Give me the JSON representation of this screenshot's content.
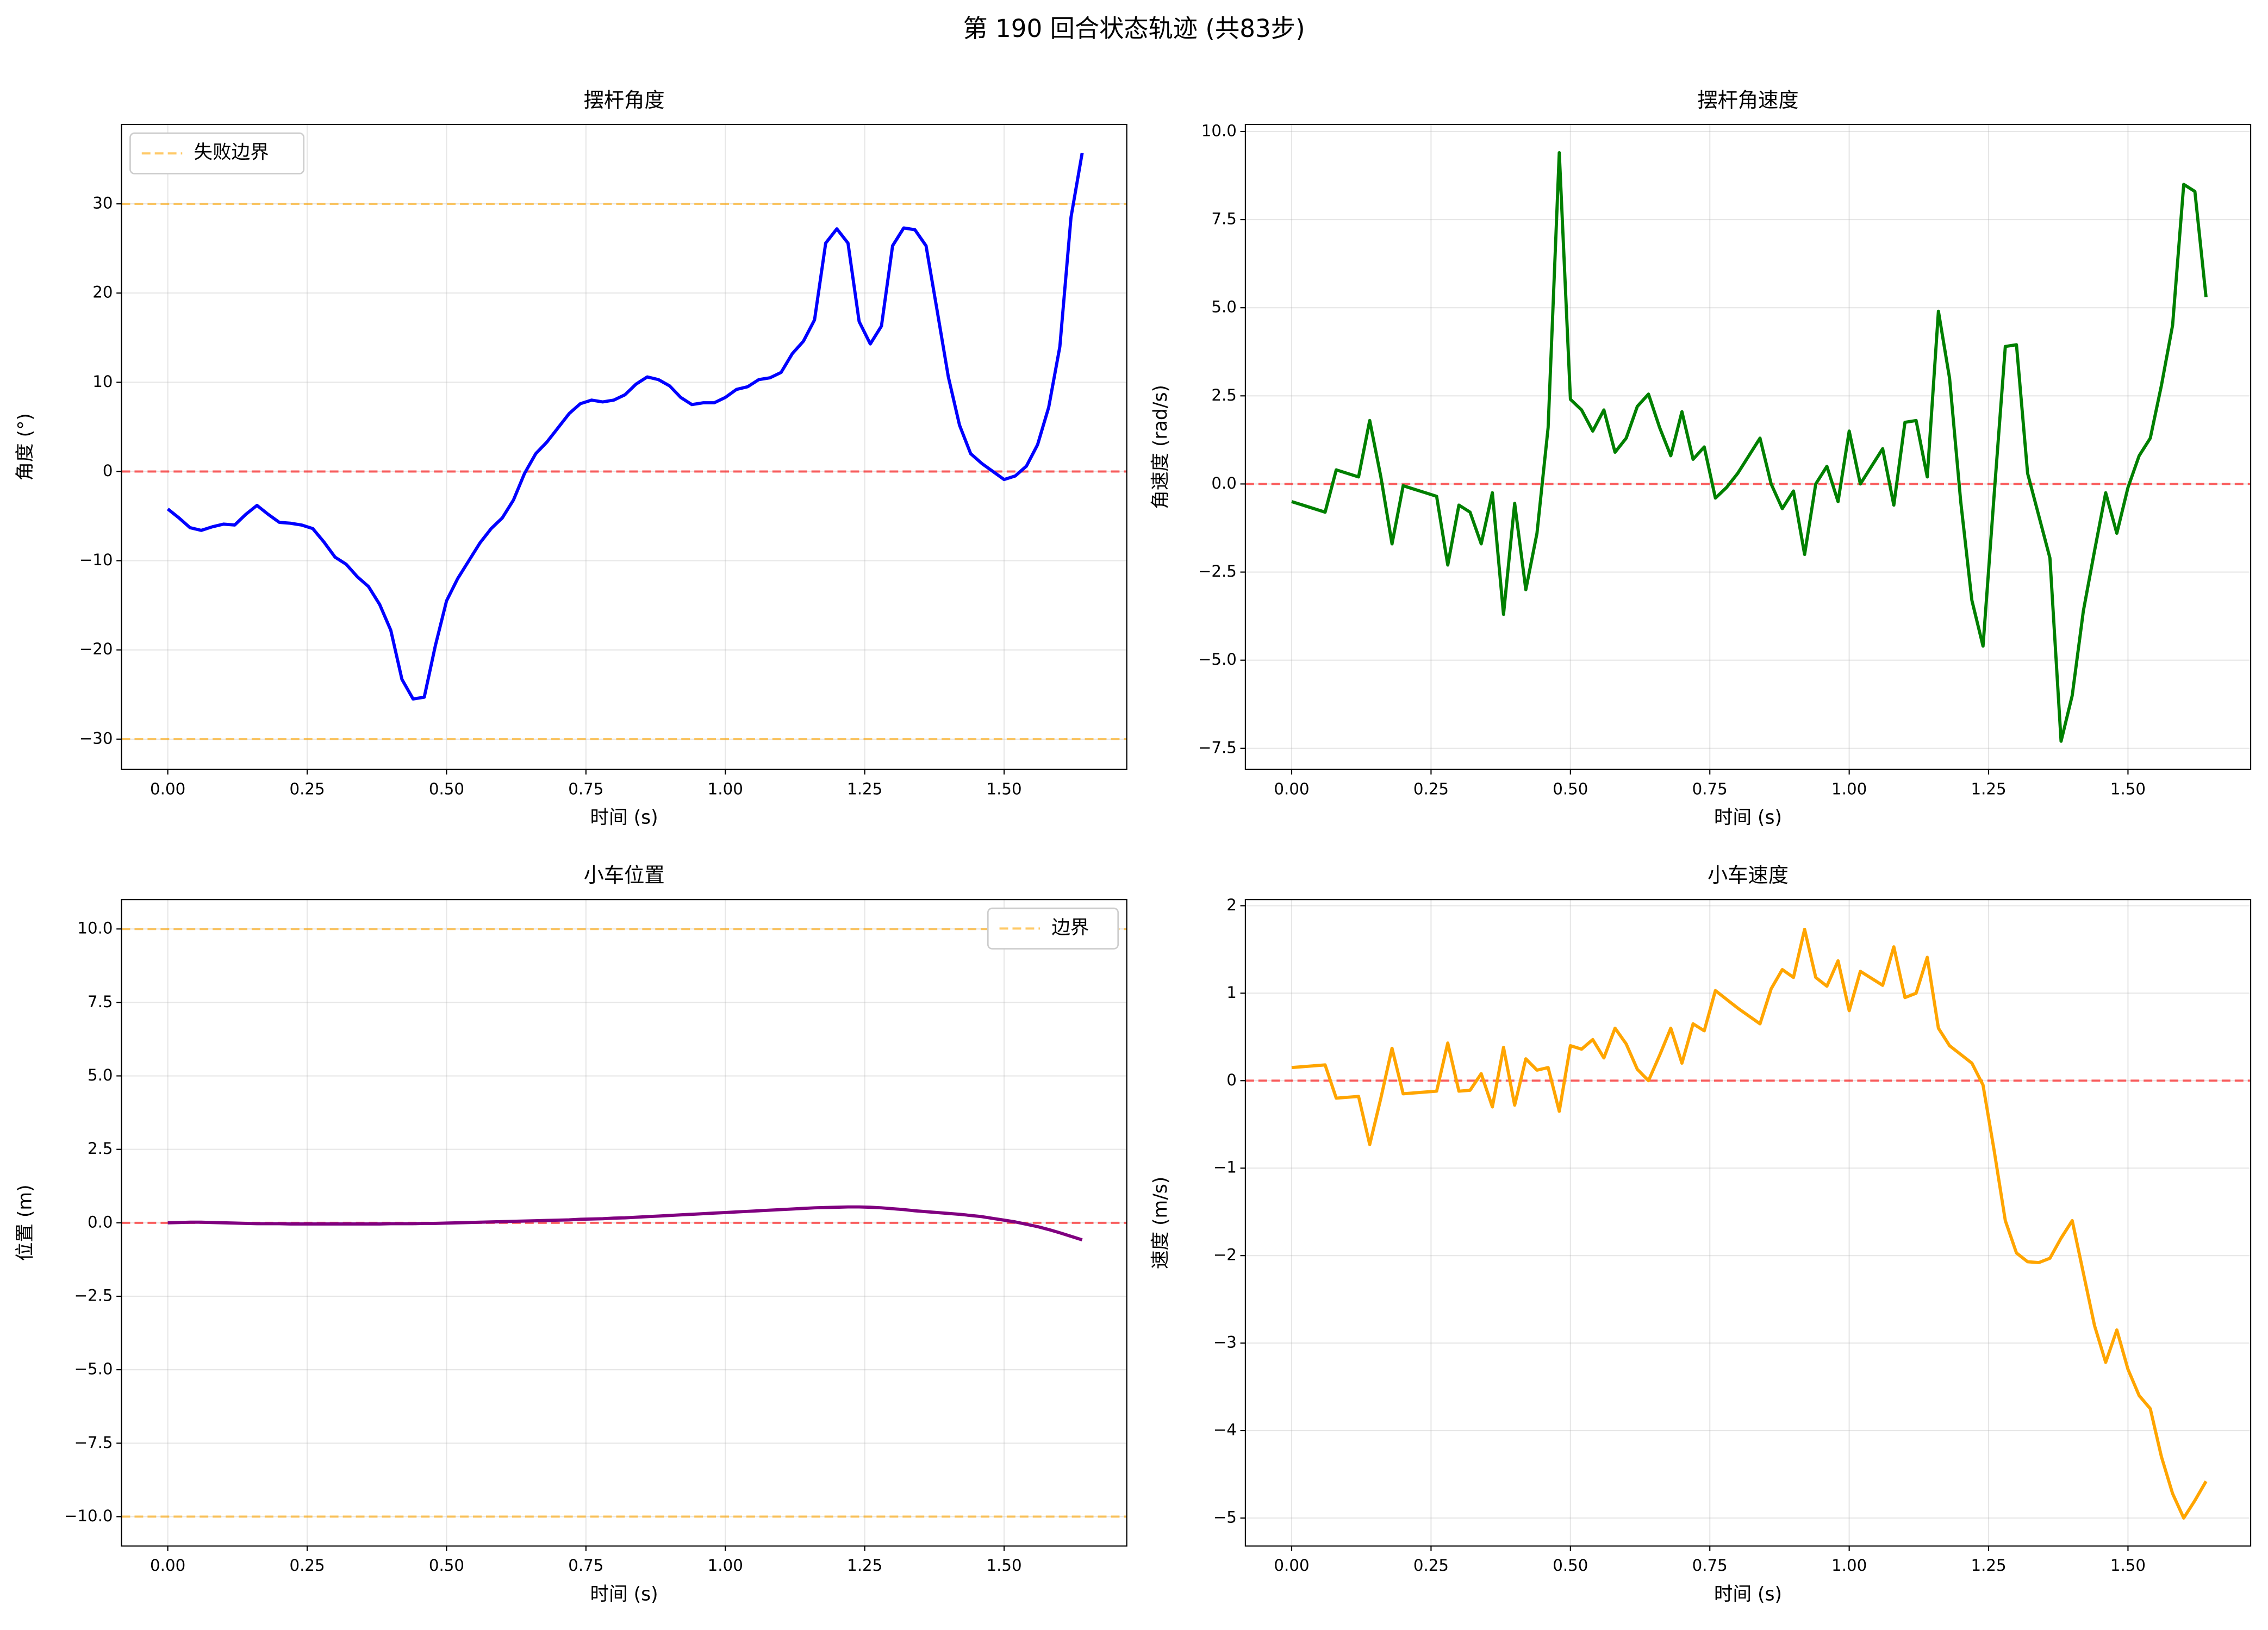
{
  "title": "第 190 回合状态轨迹 (共83步)",
  "chart_data": [
    {
      "type": "line",
      "title": "摆杆角度",
      "xlabel": "时间 (s)",
      "ylabel": "角度 (°)",
      "x": [
        0,
        0.02,
        0.04,
        0.06,
        0.08,
        0.1,
        0.12,
        0.14,
        0.16,
        0.18,
        0.2,
        0.22,
        0.24,
        0.26,
        0.28,
        0.3,
        0.32,
        0.34,
        0.36,
        0.38,
        0.4,
        0.42,
        0.44,
        0.46,
        0.48,
        0.5,
        0.52,
        0.54,
        0.56,
        0.58,
        0.6,
        0.62,
        0.64,
        0.66,
        0.68,
        0.7,
        0.72,
        0.74,
        0.76,
        0.78,
        0.8,
        0.82,
        0.84,
        0.86,
        0.88,
        0.9,
        0.92,
        0.94,
        0.96,
        0.98,
        1,
        1.02,
        1.04,
        1.06,
        1.08,
        1.1,
        1.12,
        1.14,
        1.16,
        1.18,
        1.2,
        1.22,
        1.24,
        1.26,
        1.28,
        1.3,
        1.32,
        1.34,
        1.36,
        1.38,
        1.4,
        1.42,
        1.44,
        1.46,
        1.48,
        1.5,
        1.52,
        1.54,
        1.56,
        1.58,
        1.6,
        1.62,
        1.64
      ],
      "series": [
        {
          "color": "#0000ff",
          "values": [
            -4.2,
            -5.2,
            -6.3,
            -6.6,
            -6.2,
            -5.9,
            -6.0,
            -4.8,
            -3.8,
            -4.8,
            -5.7,
            -5.8,
            -6.0,
            -6.4,
            -7.9,
            -9.6,
            -10.4,
            -11.8,
            -12.9,
            -14.9,
            -17.8,
            -23.3,
            -25.5,
            -25.3,
            -19.5,
            -14.5,
            -12.0,
            -10.0,
            -8.0,
            -6.4,
            -5.2,
            -3.2,
            -0.2,
            2.0,
            3.3,
            4.9,
            6.5,
            7.6,
            8.0,
            7.8,
            8.0,
            8.6,
            9.8,
            10.6,
            10.3,
            9.6,
            8.3,
            7.5,
            7.7,
            7.7,
            8.3,
            9.2,
            9.5,
            10.3,
            10.5,
            11.1,
            13.2,
            14.6,
            17.0,
            25.6,
            27.2,
            25.6,
            16.8,
            14.3,
            16.3,
            25.3,
            27.3,
            27.1,
            25.3,
            18.0,
            10.6,
            5.2,
            2.0,
            0.9,
            0.0,
            -0.9,
            -0.5,
            0.6,
            3.0,
            7.2,
            14.0,
            28.5,
            35.7
          ]
        }
      ],
      "hlines": [
        {
          "y": 0,
          "color": "#ff0000"
        },
        {
          "y": 30,
          "color": "#ffa500",
          "name": "失败边界"
        },
        {
          "y": -30,
          "color": "#ffa500"
        }
      ],
      "legend": "upper left",
      "grid": true,
      "xlim": [
        -0.083,
        1.72
      ],
      "ylim": [
        -33.4,
        38.9
      ],
      "xticks": [
        {
          "value": 0,
          "label": "0.00"
        },
        {
          "value": 0.25,
          "label": "0.25"
        },
        {
          "value": 0.5,
          "label": "0.50"
        },
        {
          "value": 0.75,
          "label": "0.75"
        },
        {
          "value": 1,
          "label": "1.00"
        },
        {
          "value": 1.25,
          "label": "1.25"
        },
        {
          "value": 1.5,
          "label": "1.50"
        }
      ],
      "yticks": [
        {
          "value": -30,
          "label": "−30"
        },
        {
          "value": -20,
          "label": "−20"
        },
        {
          "value": -10,
          "label": "−10"
        },
        0,
        10,
        20,
        30
      ]
    },
    {
      "type": "line",
      "title": "摆杆角速度",
      "xlabel": "时间 (s)",
      "ylabel": "角速度 (rad/s)",
      "x": [
        0,
        0.02,
        0.04,
        0.06,
        0.08,
        0.1,
        0.12,
        0.14,
        0.16,
        0.18,
        0.2,
        0.22,
        0.24,
        0.26,
        0.28,
        0.3,
        0.32,
        0.34,
        0.36,
        0.38,
        0.4,
        0.42,
        0.44,
        0.46,
        0.48,
        0.5,
        0.52,
        0.54,
        0.56,
        0.58,
        0.6,
        0.62,
        0.64,
        0.66,
        0.68,
        0.7,
        0.72,
        0.74,
        0.76,
        0.78,
        0.8,
        0.82,
        0.84,
        0.86,
        0.88,
        0.9,
        0.92,
        0.94,
        0.96,
        0.98,
        1,
        1.02,
        1.04,
        1.06,
        1.08,
        1.1,
        1.12,
        1.14,
        1.16,
        1.18,
        1.2,
        1.22,
        1.24,
        1.26,
        1.28,
        1.3,
        1.32,
        1.34,
        1.36,
        1.38,
        1.4,
        1.42,
        1.44,
        1.46,
        1.48,
        1.5,
        1.52,
        1.54,
        1.56,
        1.58,
        1.6,
        1.62,
        1.64
      ],
      "series": [
        {
          "color": "#008000",
          "values": [
            -0.5,
            -0.6,
            -0.7,
            -0.8,
            0.4,
            0.3,
            0.2,
            1.8,
            0.2,
            -1.7,
            -0.05,
            -0.15,
            -0.25,
            -0.35,
            -2.3,
            -0.6,
            -0.8,
            -1.7,
            -0.25,
            -3.7,
            -0.55,
            -3.0,
            -1.4,
            1.6,
            9.4,
            2.4,
            2.1,
            1.5,
            2.1,
            0.9,
            1.3,
            2.2,
            2.55,
            1.6,
            0.8,
            2.05,
            0.7,
            1.05,
            -0.4,
            -0.1,
            0.3,
            0.8,
            1.3,
            0.0,
            -0.7,
            -0.2,
            -2.0,
            0.0,
            0.5,
            -0.5,
            1.5,
            0.0,
            0.5,
            1.0,
            -0.6,
            1.75,
            1.8,
            0.2,
            4.9,
            3.0,
            -0.5,
            -3.3,
            -4.6,
            -0.3,
            3.9,
            3.95,
            0.3,
            -0.9,
            -2.1,
            -7.3,
            -6.0,
            -3.6,
            -1.9,
            -0.25,
            -1.4,
            -0.1,
            0.8,
            1.3,
            2.8,
            4.5,
            8.5,
            8.3,
            5.3
          ]
        }
      ],
      "hlines": [
        {
          "y": 0,
          "color": "#ff0000"
        }
      ],
      "grid": true,
      "xlim": [
        -0.083,
        1.72
      ],
      "ylim": [
        -8.1,
        10.2
      ],
      "xticks": [
        {
          "value": 0,
          "label": "0.00"
        },
        {
          "value": 0.25,
          "label": "0.25"
        },
        {
          "value": 0.5,
          "label": "0.50"
        },
        {
          "value": 0.75,
          "label": "0.75"
        },
        {
          "value": 1,
          "label": "1.00"
        },
        {
          "value": 1.25,
          "label": "1.25"
        },
        {
          "value": 1.5,
          "label": "1.50"
        }
      ],
      "yticks": [
        {
          "value": -7.5,
          "label": "−7.5"
        },
        {
          "value": -5,
          "label": "−5.0"
        },
        {
          "value": -2.5,
          "label": "−2.5"
        },
        {
          "value": 0,
          "label": "0.0"
        },
        2.5,
        {
          "value": 5,
          "label": "5.0"
        },
        7.5,
        {
          "value": 10,
          "label": "10.0"
        }
      ]
    },
    {
      "type": "line",
      "title": "小车位置",
      "xlabel": "时间 (s)",
      "ylabel": "位置 (m)",
      "x": [
        0,
        0.02,
        0.04,
        0.06,
        0.08,
        0.1,
        0.12,
        0.14,
        0.16,
        0.18,
        0.2,
        0.22,
        0.24,
        0.26,
        0.28,
        0.3,
        0.32,
        0.34,
        0.36,
        0.38,
        0.4,
        0.42,
        0.44,
        0.46,
        0.48,
        0.5,
        0.52,
        0.54,
        0.56,
        0.58,
        0.6,
        0.62,
        0.64,
        0.66,
        0.68,
        0.7,
        0.72,
        0.74,
        0.76,
        0.78,
        0.8,
        0.82,
        0.84,
        0.86,
        0.88,
        0.9,
        0.92,
        0.94,
        0.96,
        0.98,
        1,
        1.02,
        1.04,
        1.06,
        1.08,
        1.1,
        1.12,
        1.14,
        1.16,
        1.18,
        1.2,
        1.22,
        1.24,
        1.26,
        1.28,
        1.3,
        1.32,
        1.34,
        1.36,
        1.38,
        1.4,
        1.42,
        1.44,
        1.46,
        1.48,
        1.5,
        1.52,
        1.54,
        1.56,
        1.58,
        1.6,
        1.62,
        1.64
      ],
      "series": [
        {
          "color": "#800080",
          "values": [
            0,
            0.01,
            0.02,
            0.02,
            0.01,
            0.0,
            -0.01,
            -0.02,
            -0.03,
            -0.03,
            -0.03,
            -0.04,
            -0.04,
            -0.04,
            -0.04,
            -0.04,
            -0.04,
            -0.04,
            -0.04,
            -0.04,
            -0.03,
            -0.03,
            -0.03,
            -0.02,
            -0.02,
            -0.01,
            0.0,
            0.01,
            0.02,
            0.03,
            0.04,
            0.05,
            0.06,
            0.07,
            0.08,
            0.09,
            0.1,
            0.12,
            0.13,
            0.14,
            0.16,
            0.17,
            0.19,
            0.21,
            0.23,
            0.25,
            0.27,
            0.29,
            0.31,
            0.33,
            0.35,
            0.37,
            0.39,
            0.41,
            0.43,
            0.45,
            0.47,
            0.49,
            0.51,
            0.52,
            0.53,
            0.54,
            0.54,
            0.53,
            0.51,
            0.48,
            0.45,
            0.41,
            0.38,
            0.35,
            0.32,
            0.29,
            0.25,
            0.21,
            0.15,
            0.09,
            0.03,
            -0.05,
            -0.13,
            -0.23,
            -0.34,
            -0.46,
            -0.58
          ]
        }
      ],
      "hlines": [
        {
          "y": 0,
          "color": "#ff0000"
        },
        {
          "y": 10,
          "color": "#ffa500",
          "name": "边界"
        },
        {
          "y": -10,
          "color": "#ffa500"
        }
      ],
      "legend": "upper right",
      "grid": true,
      "xlim": [
        -0.083,
        1.72
      ],
      "ylim": [
        -11.0,
        11.0
      ],
      "xticks": [
        {
          "value": 0,
          "label": "0.00"
        },
        {
          "value": 0.25,
          "label": "0.25"
        },
        {
          "value": 0.5,
          "label": "0.50"
        },
        {
          "value": 0.75,
          "label": "0.75"
        },
        {
          "value": 1,
          "label": "1.00"
        },
        {
          "value": 1.25,
          "label": "1.25"
        },
        {
          "value": 1.5,
          "label": "1.50"
        }
      ],
      "yticks": [
        {
          "value": -10,
          "label": "−10.0"
        },
        {
          "value": -7.5,
          "label": "−7.5"
        },
        {
          "value": -5,
          "label": "−5.0"
        },
        {
          "value": -2.5,
          "label": "−2.5"
        },
        {
          "value": 0,
          "label": "0.0"
        },
        2.5,
        {
          "value": 5,
          "label": "5.0"
        },
        7.5,
        {
          "value": 10,
          "label": "10.0"
        }
      ]
    },
    {
      "type": "line",
      "title": "小车速度",
      "xlabel": "时间 (s)",
      "ylabel": "速度 (m/s)",
      "x": [
        0,
        0.02,
        0.04,
        0.06,
        0.08,
        0.1,
        0.12,
        0.14,
        0.16,
        0.18,
        0.2,
        0.22,
        0.24,
        0.26,
        0.28,
        0.3,
        0.32,
        0.34,
        0.36,
        0.38,
        0.4,
        0.42,
        0.44,
        0.46,
        0.48,
        0.5,
        0.52,
        0.54,
        0.56,
        0.58,
        0.6,
        0.62,
        0.64,
        0.66,
        0.68,
        0.7,
        0.72,
        0.74,
        0.76,
        0.78,
        0.8,
        0.82,
        0.84,
        0.86,
        0.88,
        0.9,
        0.92,
        0.94,
        0.96,
        0.98,
        1,
        1.02,
        1.04,
        1.06,
        1.08,
        1.1,
        1.12,
        1.14,
        1.16,
        1.18,
        1.2,
        1.22,
        1.24,
        1.26,
        1.28,
        1.3,
        1.32,
        1.34,
        1.36,
        1.38,
        1.4,
        1.42,
        1.44,
        1.46,
        1.48,
        1.5,
        1.52,
        1.54,
        1.56,
        1.58,
        1.6,
        1.62,
        1.64
      ],
      "series": [
        {
          "color": "#ffa500",
          "values": [
            0.15,
            0.16,
            0.17,
            0.18,
            -0.2,
            -0.19,
            -0.18,
            -0.73,
            -0.2,
            0.37,
            -0.15,
            -0.14,
            -0.13,
            -0.12,
            0.43,
            -0.12,
            -0.11,
            0.08,
            -0.3,
            0.38,
            -0.28,
            0.25,
            0.12,
            0.15,
            -0.35,
            0.4,
            0.36,
            0.47,
            0.26,
            0.6,
            0.42,
            0.13,
            0.0,
            0.29,
            0.6,
            0.2,
            0.65,
            0.57,
            1.03,
            0.93,
            0.83,
            0.74,
            0.65,
            1.05,
            1.27,
            1.18,
            1.73,
            1.18,
            1.08,
            1.37,
            0.8,
            1.25,
            1.17,
            1.09,
            1.53,
            0.95,
            1.0,
            1.41,
            0.6,
            0.4,
            0.3,
            0.2,
            -0.05,
            -0.8,
            -1.6,
            -1.97,
            -2.07,
            -2.08,
            -2.03,
            -1.8,
            -1.6,
            -2.2,
            -2.8,
            -3.22,
            -2.85,
            -3.3,
            -3.6,
            -3.75,
            -4.3,
            -4.72,
            -5.0,
            -4.8,
            -4.58
          ]
        }
      ],
      "hlines": [
        {
          "y": 0,
          "color": "#ff0000"
        }
      ],
      "grid": true,
      "xlim": [
        -0.083,
        1.72
      ],
      "ylim": [
        -5.32,
        2.07
      ],
      "xticks": [
        {
          "value": 0,
          "label": "0.00"
        },
        {
          "value": 0.25,
          "label": "0.25"
        },
        {
          "value": 0.5,
          "label": "0.50"
        },
        {
          "value": 0.75,
          "label": "0.75"
        },
        {
          "value": 1,
          "label": "1.00"
        },
        {
          "value": 1.25,
          "label": "1.25"
        },
        {
          "value": 1.5,
          "label": "1.50"
        }
      ],
      "yticks": [
        {
          "value": -5,
          "label": "−5"
        },
        {
          "value": -4,
          "label": "−4"
        },
        {
          "value": -3,
          "label": "−3"
        },
        {
          "value": -2,
          "label": "−2"
        },
        {
          "value": -1,
          "label": "−1"
        },
        0,
        1,
        2
      ]
    }
  ]
}
